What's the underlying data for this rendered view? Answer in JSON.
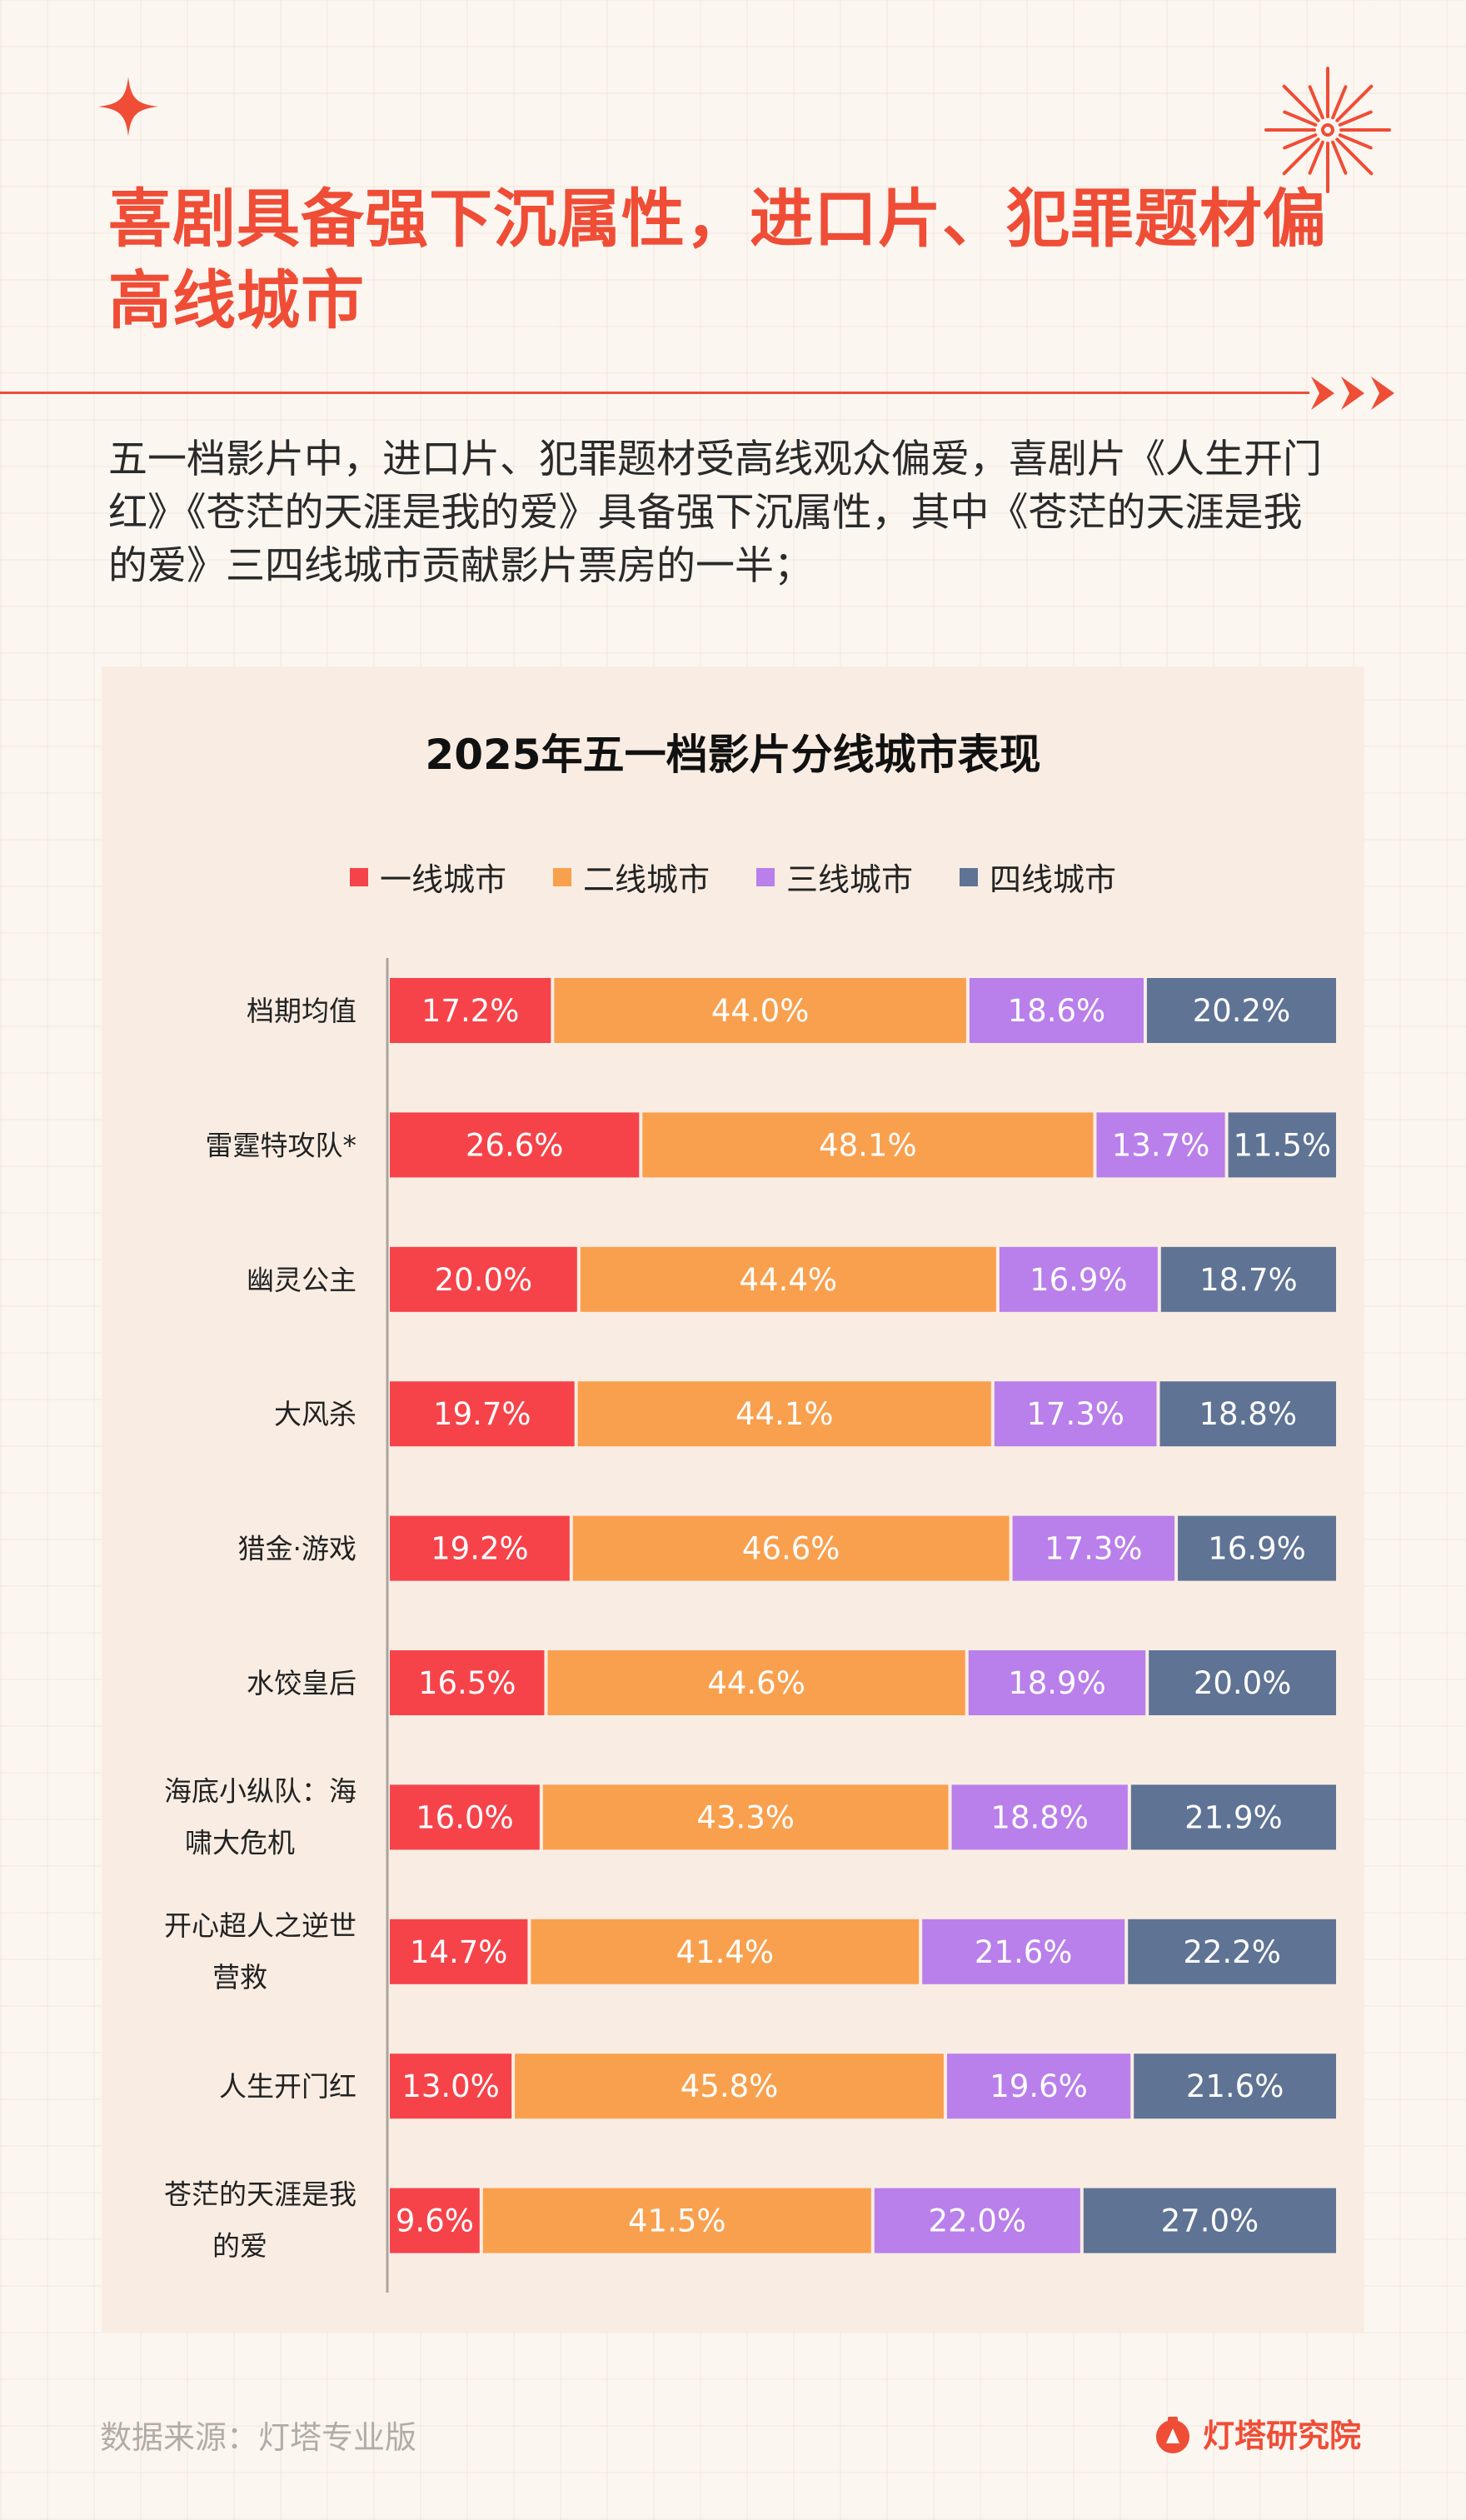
{
  "header": {
    "title": "喜剧具备强下沉属性，进口片、犯罪题材偏高线城市",
    "intro": "五一档影片中，进口片、犯罪题材受高线观众偏爱，喜剧片《人生开门红》《苍茫的天涯是我的爱》具备强下沉属性，其中《苍茫的天涯是我的爱》三四线城市贡献影片票房的一半；"
  },
  "colors": {
    "accent": "#ef4d36",
    "tier1": "#f6434a",
    "tier2": "#f9a04e",
    "tier3": "#b97fea",
    "tier4": "#5f7394"
  },
  "icons": [
    "sparkle-star-icon",
    "firework-icon",
    "triple-arrow-icon",
    "dengta-logo-icon"
  ],
  "chart_data": {
    "type": "bar",
    "orientation": "horizontal",
    "stacked": true,
    "percent": true,
    "title": "2025年五一档影片分线城市表现",
    "legend_position": "top",
    "categories": [
      "档期均值",
      "雷霆特攻队*",
      "幽灵公主",
      "大风杀",
      "猎金·游戏",
      "水饺皇后",
      "海底小纵队：海啸大危机",
      "开心超人之逆世营救",
      "人生开门红",
      "苍茫的天涯是我的爱"
    ],
    "series": [
      {
        "name": "一线城市",
        "values": [
          17.2,
          26.6,
          20.0,
          19.7,
          19.2,
          16.5,
          16.0,
          14.7,
          13.0,
          9.6
        ]
      },
      {
        "name": "二线城市",
        "values": [
          44.0,
          48.1,
          44.4,
          44.1,
          46.6,
          44.6,
          43.3,
          41.4,
          45.8,
          41.5
        ]
      },
      {
        "name": "三线城市",
        "values": [
          18.6,
          13.7,
          16.9,
          17.3,
          17.3,
          18.9,
          18.8,
          21.6,
          19.6,
          22.0
        ]
      },
      {
        "name": "四线城市",
        "values": [
          20.2,
          11.5,
          18.7,
          18.8,
          16.9,
          20.0,
          21.9,
          22.2,
          21.6,
          27.0
        ]
      }
    ]
  },
  "footer": {
    "source": "数据来源：灯塔专业版",
    "brand": "灯塔研究院"
  }
}
